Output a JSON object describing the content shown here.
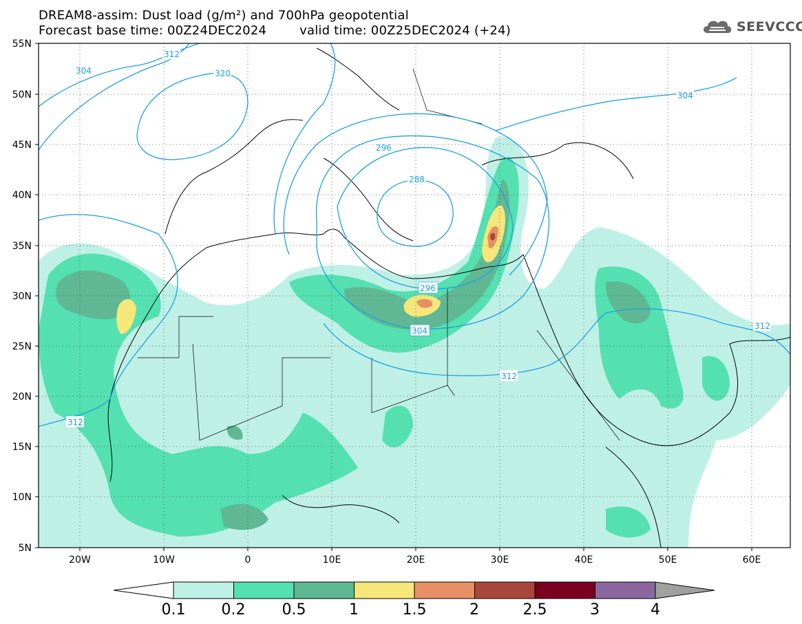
{
  "header": {
    "title_line1": "DREAM8-assim: Dust load (g/m²) and 700hPa geopotential",
    "base_time": "Forecast base time: 00Z24DEC2024",
    "valid_time": "valid time: 00Z25DEC2024 (+24)"
  },
  "logo": {
    "icon": "cloud-logo-icon",
    "text": "SEEVCCC"
  },
  "axes": {
    "lat_labels": [
      "55N",
      "50N",
      "45N",
      "40N",
      "35N",
      "30N",
      "25N",
      "20N",
      "15N",
      "10N",
      "5N"
    ],
    "lon_labels": [
      "20W",
      "10W",
      "0",
      "10E",
      "20E",
      "30E",
      "40E",
      "50E",
      "60E"
    ]
  },
  "contours": {
    "labels": [
      "304",
      "320",
      "312",
      "296",
      "288",
      "296",
      "304",
      "312",
      "304",
      "312",
      "312"
    ]
  },
  "colorbar": {
    "colors": [
      "#bff0e6",
      "#54e0b0",
      "#5fb893",
      "#f5e77a",
      "#e89065",
      "#a8473c",
      "#7b0020",
      "#8c679f"
    ],
    "ticks": [
      "0.1",
      "0.2",
      "0.5",
      "1",
      "1.5",
      "2",
      "2.5",
      "3",
      "4"
    ]
  }
}
